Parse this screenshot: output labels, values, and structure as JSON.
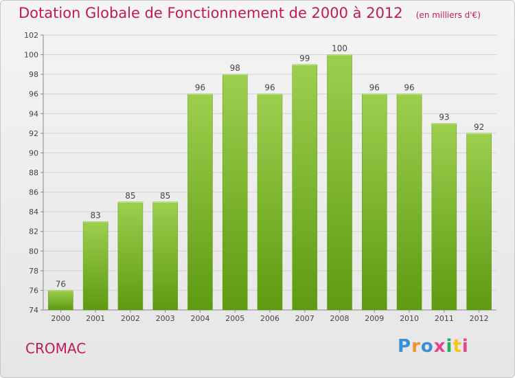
{
  "header": {
    "title": "Dotation Globale de Fonctionnement de 2000 à 2012",
    "unit": "(en milliers d'€)"
  },
  "commune": "CROMAC",
  "logo": {
    "text": "Proxiti",
    "colors": [
      "#3a8fd8",
      "#f0932b",
      "#3a8fd8",
      "#e84393",
      "#27ae60",
      "#f5c518",
      "#e84393"
    ]
  },
  "chart_data": {
    "type": "bar",
    "title": "Dotation Globale de Fonctionnement de 2000 à 2012",
    "subtitle": "(en milliers d'€)",
    "xlabel": "",
    "ylabel": "",
    "categories": [
      "2000",
      "2001",
      "2002",
      "2003",
      "2004",
      "2005",
      "2006",
      "2007",
      "2008",
      "2009",
      "2010",
      "2011",
      "2012"
    ],
    "values": [
      76,
      83,
      85,
      85,
      96,
      98,
      96,
      99,
      100,
      96,
      96,
      93,
      92
    ],
    "ylim": [
      74,
      102
    ],
    "yticks": [
      74,
      76,
      78,
      80,
      82,
      84,
      86,
      88,
      90,
      92,
      94,
      96,
      98,
      100,
      102
    ],
    "grid": true,
    "bar_color_top": "#9ccf4e",
    "bar_color_bottom": "#5e9a12",
    "text_color": "#c2185b"
  }
}
